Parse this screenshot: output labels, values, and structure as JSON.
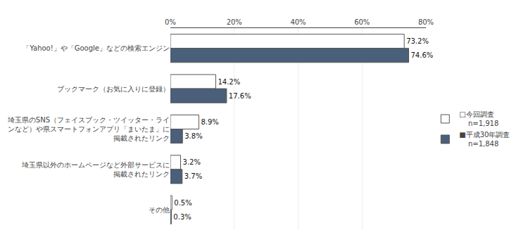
{
  "chart_data": {
    "type": "bar",
    "orientation": "horizontal",
    "categories": [
      "「Yahoo!」や「Google」などの検索エンジン",
      "ブックマーク（お気に入りに登録）",
      "埼玉県のSNS（フェイスブック・ツイッター・ライ\nンなど）や県スマートフォンアプリ「まいたま」に\n掲載されたリンク",
      "埼玉県以外のホームページなど外部サービスに\n掲載されたリンク",
      "その他"
    ],
    "series": [
      {
        "name": "□今回調査\n    n=1,918",
        "color": "#ffffff",
        "values": [
          73.2,
          14.2,
          8.9,
          3.2,
          0.5
        ],
        "value_labels": [
          "73.2%",
          "14.2%",
          "8.9%",
          "3.2%",
          "0.5%"
        ]
      },
      {
        "name": "■平成30年調査\n    n=1,848",
        "color": "#4a5f7a",
        "values": [
          74.6,
          17.6,
          3.8,
          3.7,
          0.3
        ],
        "value_labels": [
          "74.6%",
          "17.6%",
          "3.8%",
          "3.7%",
          "0.3%"
        ]
      }
    ],
    "xlim": [
      0,
      80
    ],
    "xticks": [
      {
        "value": 0,
        "label": "0%"
      },
      {
        "value": 20,
        "label": "20%"
      },
      {
        "value": 40,
        "label": "40%"
      },
      {
        "value": 60,
        "label": "60%"
      },
      {
        "value": 80,
        "label": "80%"
      }
    ],
    "grid": true,
    "data_labels": true,
    "legend": "right"
  }
}
